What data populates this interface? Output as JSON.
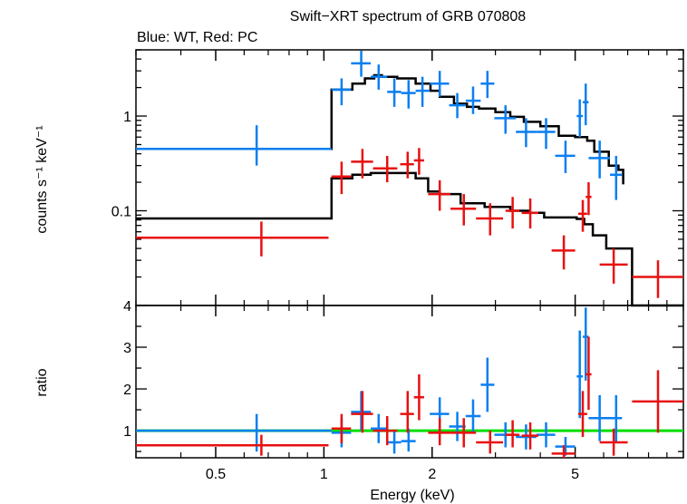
{
  "chart_data": {
    "type": "scatter",
    "title": "Swift−XRT spectrum of GRB 070808",
    "subtitle": "Blue: WT, Red: PC",
    "xlabel": "Energy (keV)",
    "x_scale": "log",
    "xlim": [
      0.3,
      10
    ],
    "x_ticks": [
      0.5,
      1,
      2,
      5
    ],
    "x_tick_labels": [
      "0.5",
      "1",
      "2",
      "5"
    ],
    "colors": {
      "wt": "#0a7ff0",
      "pc": "#e81010",
      "model": "#000000",
      "unity": "#00dd00"
    },
    "panels": [
      {
        "name": "spectrum",
        "ylabel": "counts s⁻¹ keV⁻¹",
        "y_scale": "log",
        "ylim": [
          0.01,
          5
        ],
        "y_ticks": [
          0.1,
          1
        ],
        "y_tick_labels": [
          "0.1",
          "1"
        ],
        "series": [
          {
            "key": "wt",
            "points": [
              {
                "x": 0.65,
                "xlo": 0.3,
                "xhi": 1.05,
                "y": 0.45,
                "ylo": 0.3,
                "yhi": 0.8
              },
              {
                "x": 1.12,
                "xlo": 1.05,
                "xhi": 1.19,
                "y": 1.9,
                "ylo": 1.3,
                "yhi": 2.5
              },
              {
                "x": 1.27,
                "xlo": 1.19,
                "xhi": 1.35,
                "y": 3.6,
                "ylo": 2.6,
                "yhi": 4.9
              },
              {
                "x": 1.42,
                "xlo": 1.35,
                "xhi": 1.5,
                "y": 2.6,
                "ylo": 1.9,
                "yhi": 3.5
              },
              {
                "x": 1.57,
                "xlo": 1.5,
                "xhi": 1.64,
                "y": 1.8,
                "ylo": 1.25,
                "yhi": 2.5
              },
              {
                "x": 1.72,
                "xlo": 1.64,
                "xhi": 1.8,
                "y": 1.75,
                "ylo": 1.2,
                "yhi": 2.4
              },
              {
                "x": 1.88,
                "xlo": 1.8,
                "xhi": 1.97,
                "y": 1.85,
                "ylo": 1.25,
                "yhi": 2.6
              },
              {
                "x": 2.1,
                "xlo": 1.97,
                "xhi": 2.23,
                "y": 2.2,
                "ylo": 1.6,
                "yhi": 3.0
              },
              {
                "x": 2.35,
                "xlo": 2.23,
                "xhi": 2.48,
                "y": 1.3,
                "ylo": 0.95,
                "yhi": 1.75
              },
              {
                "x": 2.6,
                "xlo": 2.48,
                "xhi": 2.73,
                "y": 1.45,
                "ylo": 1.05,
                "yhi": 2.05
              },
              {
                "x": 2.85,
                "xlo": 2.73,
                "xhi": 2.98,
                "y": 2.2,
                "ylo": 1.55,
                "yhi": 3.0
              },
              {
                "x": 3.2,
                "xlo": 2.98,
                "xhi": 3.42,
                "y": 0.95,
                "ylo": 0.65,
                "yhi": 1.3
              },
              {
                "x": 3.65,
                "xlo": 3.42,
                "xhi": 3.9,
                "y": 0.68,
                "ylo": 0.47,
                "yhi": 0.95
              },
              {
                "x": 4.15,
                "xlo": 3.9,
                "xhi": 4.4,
                "y": 0.68,
                "ylo": 0.45,
                "yhi": 0.95
              },
              {
                "x": 4.7,
                "xlo": 4.4,
                "xhi": 5.0,
                "y": 0.38,
                "ylo": 0.25,
                "yhi": 0.55
              },
              {
                "x": 5.15,
                "xlo": 5.05,
                "xhi": 5.25,
                "y": 1.0,
                "ylo": 0.6,
                "yhi": 1.5
              },
              {
                "x": 5.35,
                "xlo": 5.25,
                "xhi": 5.45,
                "y": 1.4,
                "ylo": 0.8,
                "yhi": 2.2
              },
              {
                "x": 5.85,
                "xlo": 5.45,
                "xhi": 6.25,
                "y": 0.36,
                "ylo": 0.22,
                "yhi": 0.55
              },
              {
                "x": 6.5,
                "xlo": 6.25,
                "xhi": 6.75,
                "y": 0.24,
                "ylo": 0.13,
                "yhi": 0.38
              }
            ]
          },
          {
            "key": "pc",
            "points": [
              {
                "x": 0.67,
                "xlo": 0.3,
                "xhi": 1.03,
                "y": 0.052,
                "ylo": 0.033,
                "yhi": 0.077
              },
              {
                "x": 1.12,
                "xlo": 1.05,
                "xhi": 1.19,
                "y": 0.23,
                "ylo": 0.15,
                "yhi": 0.33
              },
              {
                "x": 1.28,
                "xlo": 1.19,
                "xhi": 1.37,
                "y": 0.33,
                "ylo": 0.22,
                "yhi": 0.45
              },
              {
                "x": 1.5,
                "xlo": 1.37,
                "xhi": 1.6,
                "y": 0.28,
                "ylo": 0.2,
                "yhi": 0.38
              },
              {
                "x": 1.71,
                "xlo": 1.63,
                "xhi": 1.78,
                "y": 0.31,
                "ylo": 0.22,
                "yhi": 0.42
              },
              {
                "x": 1.84,
                "xlo": 1.78,
                "xhi": 1.9,
                "y": 0.34,
                "ylo": 0.24,
                "yhi": 0.46
              },
              {
                "x": 2.1,
                "xlo": 1.95,
                "xhi": 2.25,
                "y": 0.15,
                "ylo": 0.1,
                "yhi": 0.21
              },
              {
                "x": 2.45,
                "xlo": 2.25,
                "xhi": 2.65,
                "y": 0.105,
                "ylo": 0.07,
                "yhi": 0.15
              },
              {
                "x": 2.9,
                "xlo": 2.65,
                "xhi": 3.15,
                "y": 0.083,
                "ylo": 0.055,
                "yhi": 0.12
              },
              {
                "x": 3.35,
                "xlo": 3.2,
                "xhi": 3.5,
                "y": 0.1,
                "ylo": 0.065,
                "yhi": 0.14
              },
              {
                "x": 3.75,
                "xlo": 3.55,
                "xhi": 3.95,
                "y": 0.095,
                "ylo": 0.065,
                "yhi": 0.135
              },
              {
                "x": 4.65,
                "xlo": 4.3,
                "xhi": 5.0,
                "y": 0.038,
                "ylo": 0.024,
                "yhi": 0.055
              },
              {
                "x": 5.25,
                "xlo": 5.1,
                "xhi": 5.4,
                "y": 0.093,
                "ylo": 0.06,
                "yhi": 0.13
              },
              {
                "x": 5.45,
                "xlo": 5.35,
                "xhi": 5.55,
                "y": 0.14,
                "ylo": 0.09,
                "yhi": 0.2
              },
              {
                "x": 6.4,
                "xlo": 5.85,
                "xhi": 7.0,
                "y": 0.027,
                "ylo": 0.017,
                "yhi": 0.04
              },
              {
                "x": 8.5,
                "xlo": 7.2,
                "xhi": 10.0,
                "y": 0.02,
                "ylo": 0.012,
                "yhi": 0.03
              }
            ]
          }
        ],
        "models": [
          {
            "key": "wt",
            "steps": [
              [
                0.3,
                0.45
              ],
              [
                1.05,
                1.9
              ],
              [
                1.2,
                2.2
              ],
              [
                1.3,
                2.5
              ],
              [
                1.38,
                2.7
              ],
              [
                1.45,
                2.6
              ],
              [
                1.6,
                2.5
              ],
              [
                1.8,
                2.2
              ],
              [
                1.98,
                1.85
              ],
              [
                2.1,
                1.6
              ],
              [
                2.3,
                1.35
              ],
              [
                2.5,
                1.25
              ],
              [
                2.7,
                1.2
              ],
              [
                3.0,
                1.1
              ],
              [
                3.3,
                0.98
              ],
              [
                3.6,
                0.87
              ],
              [
                4.0,
                0.78
              ],
              [
                4.5,
                0.62
              ],
              [
                5.0,
                0.6
              ],
              [
                5.4,
                0.55
              ],
              [
                5.65,
                0.42
              ],
              [
                6.2,
                0.3
              ],
              [
                6.6,
                0.27
              ],
              [
                6.8,
                0.19
              ]
            ],
            "x_end": 6.8
          },
          {
            "key": "pc",
            "steps": [
              [
                0.3,
                0.083
              ],
              [
                1.05,
                0.22
              ],
              [
                1.2,
                0.24
              ],
              [
                1.35,
                0.25
              ],
              [
                1.65,
                0.25
              ],
              [
                1.8,
                0.22
              ],
              [
                1.95,
                0.16
              ],
              [
                2.1,
                0.15
              ],
              [
                2.4,
                0.12
              ],
              [
                2.8,
                0.11
              ],
              [
                3.3,
                0.1
              ],
              [
                3.7,
                0.095
              ],
              [
                4.1,
                0.085
              ],
              [
                4.7,
                0.085
              ],
              [
                5.05,
                0.082
              ],
              [
                5.3,
                0.072
              ],
              [
                5.6,
                0.055
              ],
              [
                6.1,
                0.04
              ],
              [
                7.2,
                0.01
              ]
            ],
            "x_end": 10.0
          }
        ]
      },
      {
        "name": "ratio",
        "ylabel": "ratio",
        "y_scale": "linear",
        "ylim": [
          0.35,
          4.0
        ],
        "y_ticks": [
          1,
          2,
          3,
          4
        ],
        "y_tick_labels": [
          "1",
          "2",
          "3",
          "4"
        ],
        "reference_line": 1.0,
        "series": [
          {
            "key": "wt",
            "points": [
              {
                "x": 0.65,
                "xlo": 0.3,
                "xhi": 1.05,
                "y": 1.0,
                "ylo": 0.5,
                "yhi": 1.4
              },
              {
                "x": 1.12,
                "xlo": 1.05,
                "xhi": 1.19,
                "y": 0.95,
                "ylo": 0.6,
                "yhi": 1.3
              },
              {
                "x": 1.27,
                "xlo": 1.19,
                "xhi": 1.35,
                "y": 1.45,
                "ylo": 1.0,
                "yhi": 1.95
              },
              {
                "x": 1.42,
                "xlo": 1.35,
                "xhi": 1.5,
                "y": 1.05,
                "ylo": 0.7,
                "yhi": 1.4
              },
              {
                "x": 1.57,
                "xlo": 1.5,
                "xhi": 1.64,
                "y": 0.72,
                "ylo": 0.45,
                "yhi": 1.0
              },
              {
                "x": 1.72,
                "xlo": 1.64,
                "xhi": 1.8,
                "y": 0.75,
                "ylo": 0.5,
                "yhi": 1.05
              },
              {
                "x": 2.1,
                "xlo": 1.97,
                "xhi": 2.23,
                "y": 1.4,
                "ylo": 1.0,
                "yhi": 1.8
              },
              {
                "x": 2.35,
                "xlo": 2.23,
                "xhi": 2.48,
                "y": 1.1,
                "ylo": 0.75,
                "yhi": 1.45
              },
              {
                "x": 2.6,
                "xlo": 2.48,
                "xhi": 2.73,
                "y": 1.35,
                "ylo": 0.95,
                "yhi": 1.75
              },
              {
                "x": 2.85,
                "xlo": 2.73,
                "xhi": 2.98,
                "y": 2.1,
                "ylo": 1.45,
                "yhi": 2.75
              },
              {
                "x": 3.2,
                "xlo": 2.98,
                "xhi": 3.42,
                "y": 0.9,
                "ylo": 0.6,
                "yhi": 1.2
              },
              {
                "x": 3.65,
                "xlo": 3.42,
                "xhi": 3.9,
                "y": 0.85,
                "ylo": 0.55,
                "yhi": 1.15
              },
              {
                "x": 4.15,
                "xlo": 3.9,
                "xhi": 4.4,
                "y": 0.9,
                "ylo": 0.6,
                "yhi": 1.2
              },
              {
                "x": 4.7,
                "xlo": 4.4,
                "xhi": 5.0,
                "y": 0.62,
                "ylo": 0.4,
                "yhi": 0.85
              },
              {
                "x": 5.15,
                "xlo": 5.05,
                "xhi": 5.25,
                "y": 2.3,
                "ylo": 1.3,
                "yhi": 3.4
              },
              {
                "x": 5.35,
                "xlo": 5.25,
                "xhi": 5.45,
                "y": 3.25,
                "ylo": 2.2,
                "yhi": 3.95
              },
              {
                "x": 5.85,
                "xlo": 5.45,
                "xhi": 6.25,
                "y": 1.3,
                "ylo": 0.75,
                "yhi": 1.85
              },
              {
                "x": 6.5,
                "xlo": 6.25,
                "xhi": 6.75,
                "y": 1.3,
                "ylo": 0.7,
                "yhi": 1.85
              }
            ]
          },
          {
            "key": "pc",
            "points": [
              {
                "x": 0.67,
                "xlo": 0.3,
                "xhi": 1.03,
                "y": 0.65,
                "ylo": 0.4,
                "yhi": 0.9
              },
              {
                "x": 1.12,
                "xlo": 1.05,
                "xhi": 1.19,
                "y": 1.05,
                "ylo": 0.7,
                "yhi": 1.4
              },
              {
                "x": 1.28,
                "xlo": 1.19,
                "xhi": 1.37,
                "y": 1.4,
                "ylo": 0.95,
                "yhi": 1.95
              },
              {
                "x": 1.5,
                "xlo": 1.37,
                "xhi": 1.6,
                "y": 1.0,
                "ylo": 0.65,
                "yhi": 1.35
              },
              {
                "x": 1.71,
                "xlo": 1.63,
                "xhi": 1.78,
                "y": 1.4,
                "ylo": 0.95,
                "yhi": 1.95
              },
              {
                "x": 1.84,
                "xlo": 1.78,
                "xhi": 1.9,
                "y": 1.8,
                "ylo": 1.25,
                "yhi": 2.35
              },
              {
                "x": 2.1,
                "xlo": 1.95,
                "xhi": 2.25,
                "y": 0.95,
                "ylo": 0.65,
                "yhi": 1.3
              },
              {
                "x": 2.45,
                "xlo": 2.25,
                "xhi": 2.65,
                "y": 0.95,
                "ylo": 0.6,
                "yhi": 1.3
              },
              {
                "x": 2.9,
                "xlo": 2.65,
                "xhi": 3.15,
                "y": 0.72,
                "ylo": 0.45,
                "yhi": 1.0
              },
              {
                "x": 3.35,
                "xlo": 3.2,
                "xhi": 3.5,
                "y": 0.9,
                "ylo": 0.6,
                "yhi": 1.25
              },
              {
                "x": 3.75,
                "xlo": 3.55,
                "xhi": 3.95,
                "y": 0.88,
                "ylo": 0.55,
                "yhi": 1.2
              },
              {
                "x": 4.65,
                "xlo": 4.3,
                "xhi": 5.0,
                "y": 0.45,
                "ylo": 0.3,
                "yhi": 0.65
              },
              {
                "x": 5.25,
                "xlo": 5.1,
                "xhi": 5.4,
                "y": 1.4,
                "ylo": 0.85,
                "yhi": 1.95
              },
              {
                "x": 5.45,
                "xlo": 5.35,
                "xhi": 5.55,
                "y": 2.35,
                "ylo": 1.5,
                "yhi": 3.25
              },
              {
                "x": 6.4,
                "xlo": 5.85,
                "xhi": 7.0,
                "y": 0.72,
                "ylo": 0.4,
                "yhi": 1.05
              },
              {
                "x": 8.5,
                "xlo": 7.2,
                "xhi": 10.0,
                "y": 1.7,
                "ylo": 0.95,
                "yhi": 2.45
              }
            ]
          }
        ]
      }
    ]
  }
}
